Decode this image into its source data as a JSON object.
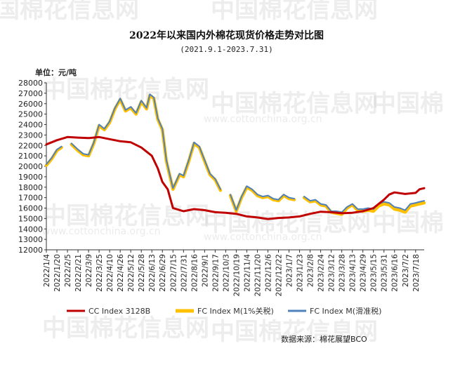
{
  "header": {
    "title": "2022年以来国内外棉花现货价格走势对比图",
    "subtitle": "(2021.9.1-2023.7.31)",
    "unit": "单位：元/吨"
  },
  "footer": {
    "source": "数据来源：棉花展望BCO"
  },
  "watermarks": {
    "brand": "中国棉花信息网",
    "brand_short": "中国棉",
    "url": "www.cottonchina.org.cn"
  },
  "colors": {
    "cc": "#c00000",
    "fc1": "#ffc000",
    "fc2": "#4f81bd"
  },
  "chart_data": {
    "type": "line",
    "ylim": [
      12000,
      28000
    ],
    "yticks": [
      12000,
      13000,
      14000,
      15000,
      16000,
      17000,
      18000,
      19000,
      20000,
      21000,
      22000,
      23000,
      24000,
      25000,
      26000,
      27000,
      28000
    ],
    "xlim": [
      "2022/1/4",
      "2023/7/31"
    ],
    "x_tick_labels": [
      "2022/1/4",
      "2022/1/20",
      "2022/2/5",
      "2022/2/21",
      "2022/3/9",
      "2022/3/25",
      "2022/4/10",
      "2022/4/26",
      "2022/5/12",
      "2022/5/28",
      "2022/6/13",
      "2022/6/29",
      "2022/7/15",
      "2022/7/31",
      "2022/8/16",
      "2022/9/1",
      "2022/9/17",
      "2022/10/3",
      "2022/10/19",
      "2022/11/4",
      "2022/11/20",
      "2022/12/6",
      "2022/12/22",
      "2023/1/7",
      "2023/1/23",
      "2023/2/8",
      "2023/2/24",
      "2023/3/12",
      "2023/3/28",
      "2023/4/13",
      "2023/4/29",
      "2023/5/15",
      "2023/5/31",
      "2023/6/16",
      "2023/7/2",
      "2023/7/18"
    ],
    "series": [
      {
        "name": "CC Index 3128B",
        "points": [
          [
            "2022/1/4",
            22100
          ],
          [
            "2022/1/20",
            22500
          ],
          [
            "2022/2/5",
            22800
          ],
          [
            "2022/2/21",
            22750
          ],
          [
            "2022/3/9",
            22700
          ],
          [
            "2022/3/25",
            22800
          ],
          [
            "2022/4/10",
            22600
          ],
          [
            "2022/4/26",
            22400
          ],
          [
            "2022/5/12",
            22300
          ],
          [
            "2022/5/28",
            21800
          ],
          [
            "2022/6/13",
            21000
          ],
          [
            "2022/6/22",
            19800
          ],
          [
            "2022/6/29",
            18500
          ],
          [
            "2022/7/7",
            17800
          ],
          [
            "2022/7/15",
            16000
          ],
          [
            "2022/7/31",
            15700
          ],
          [
            "2022/8/16",
            15900
          ],
          [
            "2022/9/1",
            15800
          ],
          [
            "2022/9/17",
            15600
          ],
          [
            "2022/10/3",
            15550
          ],
          [
            "2022/10/19",
            15450
          ],
          [
            "2022/11/4",
            15200
          ],
          [
            "2022/11/20",
            15100
          ],
          [
            "2022/12/6",
            14950
          ],
          [
            "2022/12/22",
            15050
          ],
          [
            "2023/1/7",
            15100
          ],
          [
            "2023/1/23",
            15200
          ],
          [
            "2023/2/8",
            15450
          ],
          [
            "2023/2/24",
            15650
          ],
          [
            "2023/3/12",
            15600
          ],
          [
            "2023/3/28",
            15500
          ],
          [
            "2023/4/13",
            15550
          ],
          [
            "2023/4/29",
            15700
          ],
          [
            "2023/5/15",
            16000
          ],
          [
            "2023/5/31",
            16800
          ],
          [
            "2023/6/8",
            17300
          ],
          [
            "2023/6/16",
            17500
          ],
          [
            "2023/7/2",
            17350
          ],
          [
            "2023/7/18",
            17450
          ],
          [
            "2023/7/24",
            17800
          ],
          [
            "2023/7/31",
            17900
          ]
        ]
      },
      {
        "name": "FC Index M(1%关税)",
        "points": [
          [
            "2022/1/4",
            20100
          ],
          [
            "2022/1/12",
            20700
          ],
          [
            "2022/1/20",
            21500
          ],
          [
            "2022/1/27",
            21800
          ],
          [
            "2022/2/5",
            null
          ],
          [
            "2022/2/11",
            22100
          ],
          [
            "2022/2/21",
            21500
          ],
          [
            "2022/3/1",
            21100
          ],
          [
            "2022/3/9",
            21000
          ],
          [
            "2022/3/17",
            22200
          ],
          [
            "2022/3/25",
            23900
          ],
          [
            "2022/4/2",
            23500
          ],
          [
            "2022/4/10",
            24200
          ],
          [
            "2022/4/18",
            25500
          ],
          [
            "2022/4/26",
            26400
          ],
          [
            "2022/5/4",
            25300
          ],
          [
            "2022/5/12",
            25600
          ],
          [
            "2022/5/20",
            25000
          ],
          [
            "2022/5/28",
            26200
          ],
          [
            "2022/6/5",
            25500
          ],
          [
            "2022/6/10",
            26800
          ],
          [
            "2022/6/16",
            26500
          ],
          [
            "2022/6/22",
            24500
          ],
          [
            "2022/6/29",
            23500
          ],
          [
            "2022/7/5",
            20500
          ],
          [
            "2022/7/15",
            17800
          ],
          [
            "2022/7/25",
            19200
          ],
          [
            "2022/7/31",
            19000
          ],
          [
            "2022/8/8",
            20500
          ],
          [
            "2022/8/16",
            22200
          ],
          [
            "2022/8/24",
            21800
          ],
          [
            "2022/9/1",
            20500
          ],
          [
            "2022/9/9",
            19200
          ],
          [
            "2022/9/17",
            18700
          ],
          [
            "2022/9/25",
            17700
          ],
          [
            "2022/10/3",
            null
          ],
          [
            "2022/10/10",
            17200
          ],
          [
            "2022/10/19",
            15700
          ],
          [
            "2022/10/27",
            17000
          ],
          [
            "2022/11/4",
            18000
          ],
          [
            "2022/11/12",
            17700
          ],
          [
            "2022/11/20",
            17200
          ],
          [
            "2022/11/28",
            17000
          ],
          [
            "2022/12/6",
            17100
          ],
          [
            "2022/12/14",
            16800
          ],
          [
            "2022/12/22",
            16700
          ],
          [
            "2022/12/30",
            17200
          ],
          [
            "2023/1/7",
            16900
          ],
          [
            "2023/1/15",
            16800
          ],
          [
            "2023/1/23",
            null
          ],
          [
            "2023/1/30",
            17000
          ],
          [
            "2023/2/8",
            16600
          ],
          [
            "2023/2/16",
            16700
          ],
          [
            "2023/2/24",
            16300
          ],
          [
            "2023/3/4",
            16200
          ],
          [
            "2023/3/12",
            15600
          ],
          [
            "2023/3/20",
            15500
          ],
          [
            "2023/3/28",
            15400
          ],
          [
            "2023/4/5",
            16000
          ],
          [
            "2023/4/13",
            16300
          ],
          [
            "2023/4/21",
            15800
          ],
          [
            "2023/4/29",
            15700
          ],
          [
            "2023/5/7",
            15800
          ],
          [
            "2023/5/15",
            15700
          ],
          [
            "2023/5/23",
            16200
          ],
          [
            "2023/5/31",
            16400
          ],
          [
            "2023/6/8",
            16300
          ],
          [
            "2023/6/16",
            15900
          ],
          [
            "2023/6/24",
            15800
          ],
          [
            "2023/7/2",
            15600
          ],
          [
            "2023/7/10",
            16200
          ],
          [
            "2023/7/18",
            16300
          ],
          [
            "2023/7/24",
            16400
          ],
          [
            "2023/7/31",
            16500
          ]
        ]
      },
      {
        "name": "FC Index M(滑准税)",
        "points": [
          [
            "2022/1/4",
            20200
          ],
          [
            "2022/1/12",
            20800
          ],
          [
            "2022/1/20",
            21600
          ],
          [
            "2022/1/27",
            21900
          ],
          [
            "2022/2/5",
            null
          ],
          [
            "2022/2/11",
            22200
          ],
          [
            "2022/2/21",
            21600
          ],
          [
            "2022/3/1",
            21200
          ],
          [
            "2022/3/9",
            21100
          ],
          [
            "2022/3/17",
            22300
          ],
          [
            "2022/3/25",
            24000
          ],
          [
            "2022/4/2",
            23600
          ],
          [
            "2022/4/10",
            24300
          ],
          [
            "2022/4/18",
            25600
          ],
          [
            "2022/4/26",
            26500
          ],
          [
            "2022/5/4",
            25400
          ],
          [
            "2022/5/12",
            25700
          ],
          [
            "2022/5/20",
            25100
          ],
          [
            "2022/5/28",
            26300
          ],
          [
            "2022/6/5",
            25600
          ],
          [
            "2022/6/10",
            26900
          ],
          [
            "2022/6/16",
            26600
          ],
          [
            "2022/6/22",
            24600
          ],
          [
            "2022/6/29",
            23600
          ],
          [
            "2022/7/5",
            20600
          ],
          [
            "2022/7/15",
            17900
          ],
          [
            "2022/7/25",
            19300
          ],
          [
            "2022/7/31",
            19100
          ],
          [
            "2022/8/8",
            20600
          ],
          [
            "2022/8/16",
            22300
          ],
          [
            "2022/8/24",
            21900
          ],
          [
            "2022/9/1",
            20600
          ],
          [
            "2022/9/9",
            19300
          ],
          [
            "2022/9/17",
            18800
          ],
          [
            "2022/9/25",
            17800
          ],
          [
            "2022/10/3",
            null
          ],
          [
            "2022/10/10",
            17300
          ],
          [
            "2022/10/19",
            15800
          ],
          [
            "2022/10/27",
            17100
          ],
          [
            "2022/11/4",
            18100
          ],
          [
            "2022/11/12",
            17800
          ],
          [
            "2022/11/20",
            17300
          ],
          [
            "2022/11/28",
            17100
          ],
          [
            "2022/12/6",
            17200
          ],
          [
            "2022/12/14",
            16900
          ],
          [
            "2022/12/22",
            16800
          ],
          [
            "2022/12/30",
            17300
          ],
          [
            "2023/1/7",
            17000
          ],
          [
            "2023/1/15",
            16900
          ],
          [
            "2023/1/23",
            null
          ],
          [
            "2023/1/30",
            17100
          ],
          [
            "2023/2/8",
            16700
          ],
          [
            "2023/2/16",
            16800
          ],
          [
            "2023/2/24",
            16400
          ],
          [
            "2023/3/4",
            16300
          ],
          [
            "2023/3/12",
            15700
          ],
          [
            "2023/3/20",
            15700
          ],
          [
            "2023/3/28",
            15600
          ],
          [
            "2023/4/5",
            16100
          ],
          [
            "2023/4/13",
            16400
          ],
          [
            "2023/4/21",
            15900
          ],
          [
            "2023/4/29",
            15900
          ],
          [
            "2023/5/7",
            16000
          ],
          [
            "2023/5/15",
            15900
          ],
          [
            "2023/5/23",
            16400
          ],
          [
            "2023/5/31",
            16600
          ],
          [
            "2023/6/8",
            16500
          ],
          [
            "2023/6/16",
            16100
          ],
          [
            "2023/6/24",
            16000
          ],
          [
            "2023/7/2",
            15800
          ],
          [
            "2023/7/10",
            16400
          ],
          [
            "2023/7/18",
            16500
          ],
          [
            "2023/7/24",
            16600
          ],
          [
            "2023/7/31",
            16700
          ]
        ]
      }
    ],
    "legend_position": "bottom",
    "grid": false
  }
}
